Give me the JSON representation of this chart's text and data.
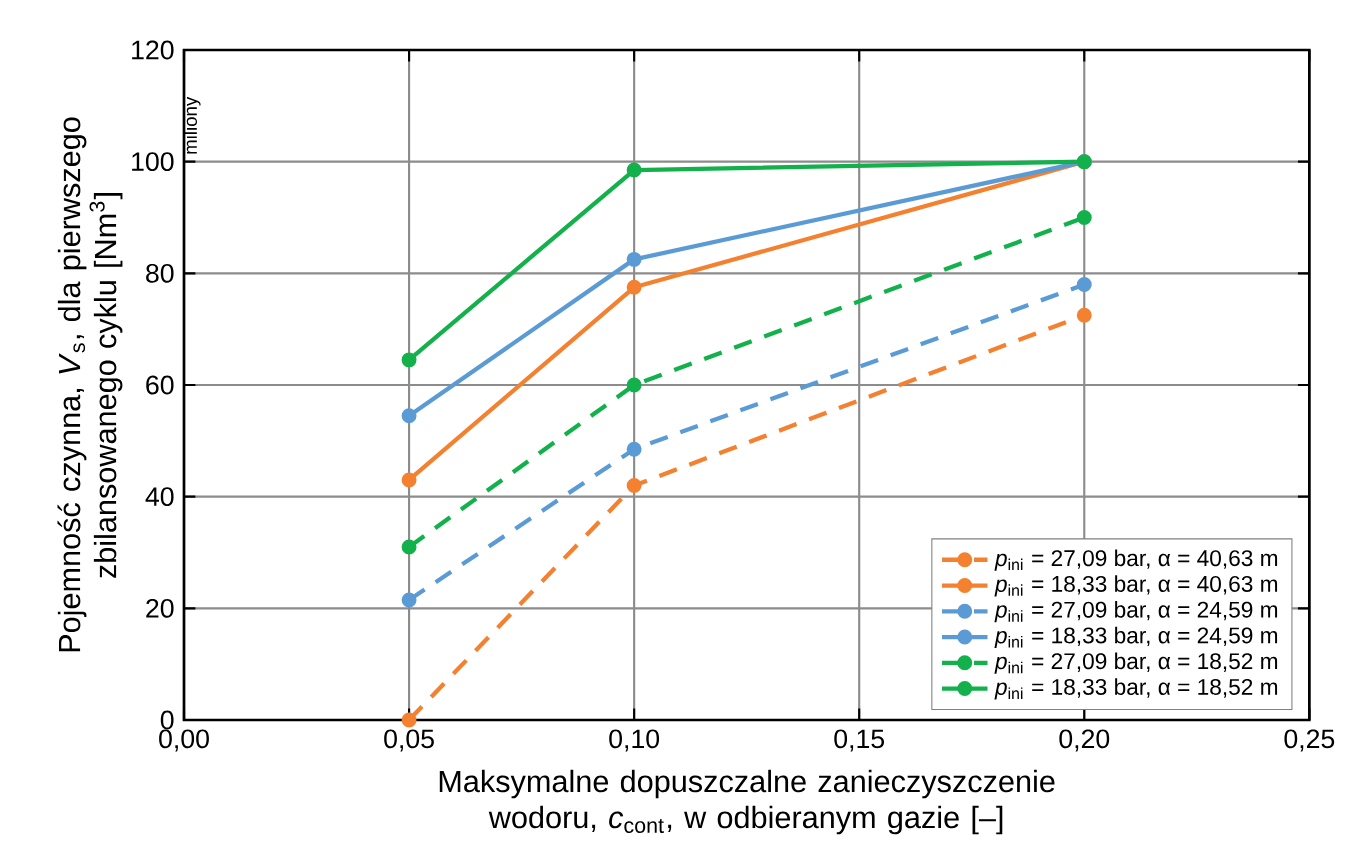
{
  "chart_data": {
    "type": "line",
    "xlabel": "Maksymalne dopuszczalne zanieczyszczenie wodoru, *c*$_{cont}$, w odbieranym gazie [–]",
    "ylabel": "Pojemność czynna, *V*$_{s}$, dla pierwszego zbilansowanego cyklu  [Nm$^{3}$]",
    "annotations": [
      "miliony"
    ],
    "x": [
      0.05,
      0.1,
      0.2
    ],
    "series": [
      {
        "name": "*p*$_{ini}$ = 27,09 bar,  α = 40,63 m",
        "color": "#f4812f",
        "line_style": "dashed",
        "values": [
          0,
          42,
          72.5
        ]
      },
      {
        "name": "*p*$_{ini}$ = 18,33 bar,  α = 40,63 m",
        "color": "#f4812f",
        "line_style": "solid",
        "values": [
          43,
          77.5,
          100
        ]
      },
      {
        "name": "*p*$_{ini}$ = 27,09 bar,  α = 24,59 m",
        "color": "#5b9bd5",
        "line_style": "dashed",
        "values": [
          21.5,
          48.5,
          78
        ]
      },
      {
        "name": "*p*$_{ini}$ = 18,33 bar,  α = 24,59 m",
        "color": "#5b9bd5",
        "line_style": "solid",
        "values": [
          54.5,
          82.5,
          100
        ]
      },
      {
        "name": "*p*$_{ini}$ = 27,09 bar,  α = 18,52 m",
        "color": "#13b14b",
        "line_style": "dashed",
        "values": [
          31,
          60,
          90
        ]
      },
      {
        "name": "*p*$_{ini}$ = 18,33 bar,  α = 18,52 m",
        "color": "#13b14b",
        "line_style": "solid",
        "values": [
          64.5,
          98.5,
          100
        ]
      }
    ],
    "xlim": [
      0,
      0.25
    ],
    "xticks": [
      {
        "value": 0,
        "label": "0,00"
      },
      {
        "value": 0.05,
        "label": "0,05"
      },
      {
        "value": 0.1,
        "label": "0,10"
      },
      {
        "value": 0.15,
        "label": "0,15"
      },
      {
        "value": 0.2,
        "label": "0,20"
      },
      {
        "value": 0.25,
        "label": "0,25"
      }
    ],
    "ylim": [
      0,
      120
    ],
    "yticks": [
      0,
      20,
      40,
      60,
      80,
      100,
      120
    ],
    "grid": true,
    "legend": "bottom right",
    "marker": "circle"
  }
}
